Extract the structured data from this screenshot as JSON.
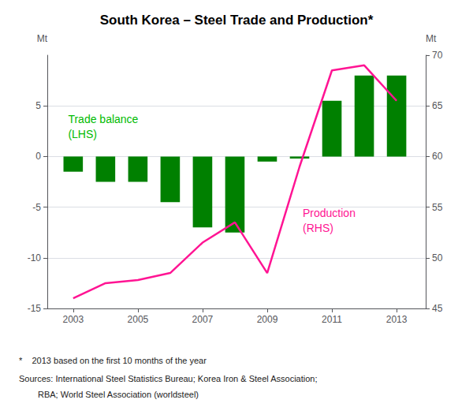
{
  "chart_data": {
    "type": "bar",
    "title": "South Korea – Steel Trade and Production*",
    "x": [
      2003,
      2004,
      2005,
      2006,
      2007,
      2008,
      2009,
      2010,
      2011,
      2012,
      2013
    ],
    "xlim": [
      2002.2,
      2013.9
    ],
    "xticks": [
      2003,
      2005,
      2007,
      2009,
      2011,
      2013
    ],
    "ylabel": "Mt",
    "ylim": [
      -15,
      10
    ],
    "yticks": [
      -15,
      -10,
      -5,
      0,
      5
    ],
    "y2label": "Mt",
    "y2lim": [
      45,
      70
    ],
    "y2ticks": [
      45,
      50,
      55,
      60,
      65,
      70
    ],
    "grid": true,
    "series": [
      {
        "type": "bar",
        "color": "#008000",
        "values": [
          -1.5,
          -2.5,
          -2.5,
          -4.5,
          -7.0,
          -7.5,
          -0.5,
          -0.2,
          5.5,
          8.0,
          8.0
        ]
      },
      {
        "type": "line",
        "color": "#FF1493",
        "axis": "y2",
        "values": [
          46.0,
          47.5,
          47.8,
          48.5,
          51.5,
          53.5,
          48.5,
          59.0,
          68.5,
          69.0,
          65.5
        ]
      }
    ],
    "annotations": [
      {
        "text": "Trade balance\n(LHS)",
        "color": "#00bb00"
      },
      {
        "text": "Production\n(RHS)",
        "color": "#FF1493"
      }
    ],
    "footnotes": [
      "*    2013 based on the first 10 months of the year",
      "Sources: International Steel Statistics Bureau; Korea Iron & Steel Association;",
      "RBA; World Steel Association (worldsteel)"
    ]
  }
}
